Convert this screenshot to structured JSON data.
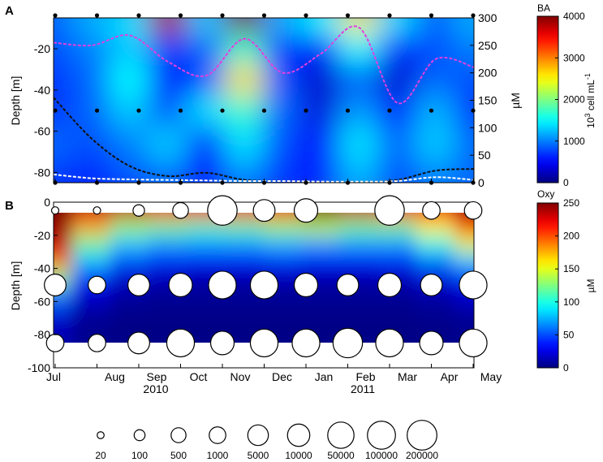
{
  "chart_data": [
    {
      "type": "heatmap",
      "panel_label": "A",
      "ylabel": "Depth [m]",
      "y2label": "µM",
      "ylim": [
        -85,
        -5
      ],
      "yticks": [
        -20,
        -40,
        -60,
        -80
      ],
      "y2lim": [
        0,
        300
      ],
      "y2ticks": [
        0,
        50,
        100,
        150,
        200,
        250,
        300
      ],
      "colorbar": {
        "title": "BA",
        "label_base": "10",
        "label_exp": "3",
        "label_rest": " cell mL",
        "label_exp2": "-1",
        "ticks": [
          0,
          1000,
          2000,
          3000,
          4000
        ],
        "range": [
          0,
          4000
        ]
      },
      "sample_depths": [
        -5,
        -50,
        -85
      ],
      "sample_month_idx": [
        0,
        1,
        2,
        3,
        4,
        5,
        6,
        7,
        8,
        9,
        10
      ],
      "grid": {
        "depths": [
          -5,
          -20,
          -35,
          -50,
          -65,
          -85
        ],
        "months": [
          0,
          1,
          2,
          3,
          4,
          5,
          6,
          7,
          8,
          9,
          10,
          11
        ],
        "values": [
          [
            900,
            1200,
            1400,
            3800,
            1300,
            4000,
            1200,
            1500,
            2600,
            1400,
            900,
            1200
          ],
          [
            800,
            1000,
            1300,
            700,
            900,
            1700,
            700,
            500,
            1500,
            600,
            800,
            1000
          ],
          [
            700,
            900,
            1500,
            500,
            800,
            2600,
            800,
            300,
            900,
            300,
            900,
            800
          ],
          [
            700,
            900,
            1300,
            800,
            1400,
            1700,
            900,
            350,
            1100,
            600,
            1200,
            700
          ],
          [
            900,
            800,
            1000,
            1300,
            600,
            1400,
            800,
            500,
            1400,
            900,
            1300,
            900
          ],
          [
            700,
            600,
            800,
            900,
            500,
            1000,
            700,
            600,
            1200,
            800,
            1000,
            900
          ]
        ]
      },
      "series": [
        {
          "name": "",
          "color": "#e040e0",
          "x": [
            0,
            1,
            2,
            3,
            4,
            5,
            6,
            7,
            8,
            9,
            10,
            11
          ],
          "y": [
            255,
            250,
            268,
            220,
            195,
            262,
            200,
            235,
            282,
            145,
            225,
            210
          ]
        },
        {
          "name": "",
          "color": "#111111",
          "x": [
            0,
            1,
            2,
            3,
            4,
            5,
            6,
            7,
            8,
            9,
            10,
            11
          ],
          "y": [
            155,
            80,
            30,
            12,
            18,
            5,
            3,
            2,
            2,
            5,
            22,
            25
          ]
        },
        {
          "name": "",
          "color": "#ffffff",
          "x": [
            0,
            1,
            2,
            3,
            4,
            5,
            6,
            7,
            8,
            9,
            10,
            11
          ],
          "y": [
            15,
            8,
            6,
            5,
            4,
            3,
            3,
            2,
            2,
            3,
            10,
            5
          ]
        }
      ]
    },
    {
      "type": "heatmap",
      "panel_label": "B",
      "ylabel": "Depth [m]",
      "ylim": [
        -100,
        0
      ],
      "yticks": [
        0,
        -20,
        -40,
        -60,
        -80,
        -100
      ],
      "colorbar": {
        "title": "Oxy",
        "label": "µM",
        "ticks": [
          0,
          50,
          100,
          150,
          200,
          250
        ],
        "range": [
          0,
          250
        ]
      },
      "grid": {
        "depths": [
          -5,
          -15,
          -25,
          -35,
          -45,
          -55,
          -70,
          -85
        ],
        "months": [
          0,
          1,
          2,
          3,
          4,
          5,
          6,
          7,
          8,
          9,
          10,
          11
        ],
        "values": [
          [
            250,
            230,
            230,
            220,
            220,
            220,
            220,
            250,
            230,
            220,
            220,
            240
          ],
          [
            245,
            180,
            130,
            120,
            110,
            115,
            130,
            140,
            120,
            120,
            160,
            210
          ],
          [
            235,
            120,
            80,
            70,
            70,
            70,
            75,
            70,
            70,
            70,
            100,
            150
          ],
          [
            200,
            80,
            50,
            40,
            35,
            35,
            40,
            35,
            35,
            40,
            60,
            80
          ],
          [
            130,
            40,
            20,
            15,
            12,
            12,
            15,
            12,
            12,
            15,
            25,
            40
          ],
          [
            60,
            20,
            8,
            5,
            5,
            5,
            5,
            5,
            5,
            5,
            10,
            20
          ],
          [
            20,
            5,
            2,
            2,
            2,
            2,
            2,
            2,
            2,
            2,
            3,
            5
          ],
          [
            10,
            3,
            1,
            1,
            1,
            1,
            1,
            1,
            1,
            1,
            1,
            3
          ]
        ]
      },
      "bubbles": [
        {
          "month": 0,
          "depth": -5,
          "value": 20
        },
        {
          "month": 1,
          "depth": -5,
          "value": 20
        },
        {
          "month": 2,
          "depth": -5,
          "value": 100
        },
        {
          "month": 3,
          "depth": -5,
          "value": 500
        },
        {
          "month": 4,
          "depth": -5,
          "value": 100000
        },
        {
          "month": 5,
          "depth": -5,
          "value": 5000
        },
        {
          "month": 6,
          "depth": -5,
          "value": 10000
        },
        {
          "month": 8,
          "depth": -5,
          "value": 100000
        },
        {
          "month": 9,
          "depth": -5,
          "value": 1000
        },
        {
          "month": 10,
          "depth": -5,
          "value": 1000
        },
        {
          "month": 0,
          "depth": -50,
          "value": 5000
        },
        {
          "month": 1,
          "depth": -50,
          "value": 1000
        },
        {
          "month": 2,
          "depth": -50,
          "value": 5000
        },
        {
          "month": 3,
          "depth": -50,
          "value": 10000
        },
        {
          "month": 4,
          "depth": -50,
          "value": 50000
        },
        {
          "month": 5,
          "depth": -50,
          "value": 50000
        },
        {
          "month": 6,
          "depth": -50,
          "value": 10000
        },
        {
          "month": 7,
          "depth": -50,
          "value": 5000
        },
        {
          "month": 8,
          "depth": -50,
          "value": 10000
        },
        {
          "month": 9,
          "depth": -50,
          "value": 5000
        },
        {
          "month": 10,
          "depth": -50,
          "value": 50000
        },
        {
          "month": 0,
          "depth": -85,
          "value": 1000
        },
        {
          "month": 1,
          "depth": -85,
          "value": 1000
        },
        {
          "month": 2,
          "depth": -85,
          "value": 5000
        },
        {
          "month": 3,
          "depth": -85,
          "value": 50000
        },
        {
          "month": 4,
          "depth": -85,
          "value": 10000
        },
        {
          "month": 5,
          "depth": -85,
          "value": 50000
        },
        {
          "month": 6,
          "depth": -85,
          "value": 50000
        },
        {
          "month": 7,
          "depth": -85,
          "value": 100000
        },
        {
          "month": 8,
          "depth": -85,
          "value": 50000
        },
        {
          "month": 9,
          "depth": -85,
          "value": 10000
        },
        {
          "month": 10,
          "depth": -85,
          "value": 50000
        }
      ]
    }
  ],
  "x_axis": {
    "tick_labels": [
      "Jul",
      "Aug",
      "Sep",
      "Oct",
      "Nov",
      "Dec",
      "Jan",
      "Feb",
      "Mar",
      "Apr",
      "May"
    ],
    "year_labels": [
      "2010",
      "2011"
    ]
  },
  "bubble_legend": {
    "values": [
      "20",
      "100",
      "500",
      "1000",
      "5000",
      "10000",
      "50000",
      "100000",
      "200000"
    ]
  }
}
